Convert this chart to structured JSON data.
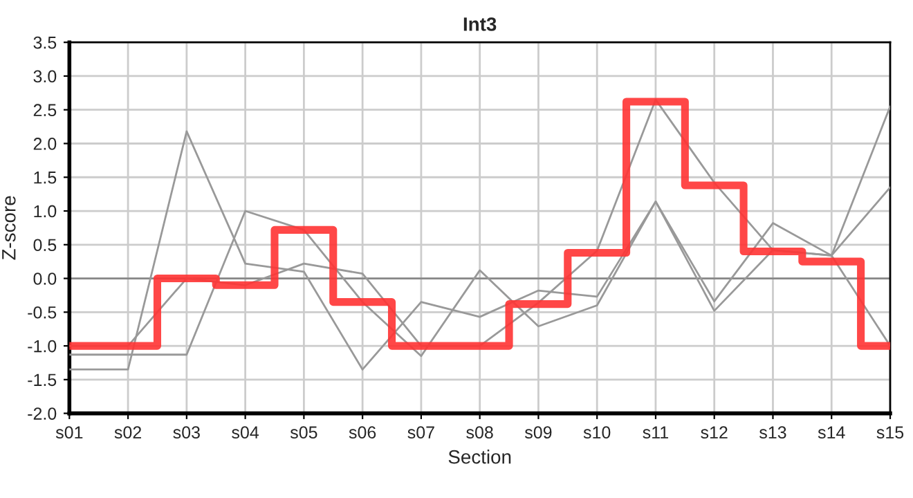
{
  "chart_data": {
    "type": "line",
    "title": "Int3",
    "xlabel": "Section",
    "ylabel": "Z-score",
    "categories": [
      "s01",
      "s02",
      "s03",
      "s04",
      "s05",
      "s06",
      "s07",
      "s08",
      "s09",
      "s10",
      "s11",
      "s12",
      "s13",
      "s14",
      "s15"
    ],
    "series": [
      {
        "color": "#999999",
        "values": [
          -1.35,
          -1.35,
          2.18,
          0.22,
          0.1,
          -1.35,
          -0.35,
          -0.57,
          -0.18,
          -0.27,
          1.14,
          -0.48,
          0.42,
          0.34,
          1.35
        ]
      },
      {
        "color": "#999999",
        "values": [
          -1.13,
          -1.13,
          -1.13,
          1.0,
          0.72,
          -0.35,
          -1.15,
          0.12,
          -0.71,
          -0.4,
          1.14,
          -0.34,
          0.82,
          0.34,
          -1.0
        ]
      },
      {
        "color": "#999999",
        "values": [
          -1.0,
          -1.0,
          0.0,
          -0.1,
          0.22,
          0.07,
          -1.0,
          -1.0,
          -0.36,
          0.41,
          2.65,
          1.42,
          0.42,
          0.34,
          2.55
        ]
      },
      {
        "type": "step",
        "color": "#ff3333",
        "values": [
          -1.0,
          -1.0,
          0.0,
          -0.1,
          0.72,
          -0.35,
          -1.0,
          -1.0,
          -0.38,
          0.38,
          2.62,
          1.38,
          0.4,
          0.25,
          -1.0
        ]
      }
    ],
    "ylim": [
      -2.0,
      3.5
    ],
    "yticks": [
      {
        "value": -2.0,
        "label": "-2.0"
      },
      {
        "value": -1.5,
        "label": "-1.5"
      },
      {
        "value": -1.0,
        "label": "-1.0"
      },
      {
        "value": -0.5,
        "label": "-0.5"
      },
      {
        "value": 0.0,
        "label": "0.0"
      },
      {
        "value": 0.5,
        "label": "0.5"
      },
      {
        "value": 1.0,
        "label": "1.0"
      },
      {
        "value": 1.5,
        "label": "1.5"
      },
      {
        "value": 2.0,
        "label": "2.0"
      },
      {
        "value": 2.5,
        "label": "2.5"
      },
      {
        "value": 3.0,
        "label": "3.0"
      },
      {
        "value": 3.5,
        "label": "3.5"
      }
    ],
    "ref_lines": [
      {
        "axis": "y",
        "value": 0.0,
        "color": "#888888"
      }
    ],
    "grid": true,
    "legend": false
  }
}
